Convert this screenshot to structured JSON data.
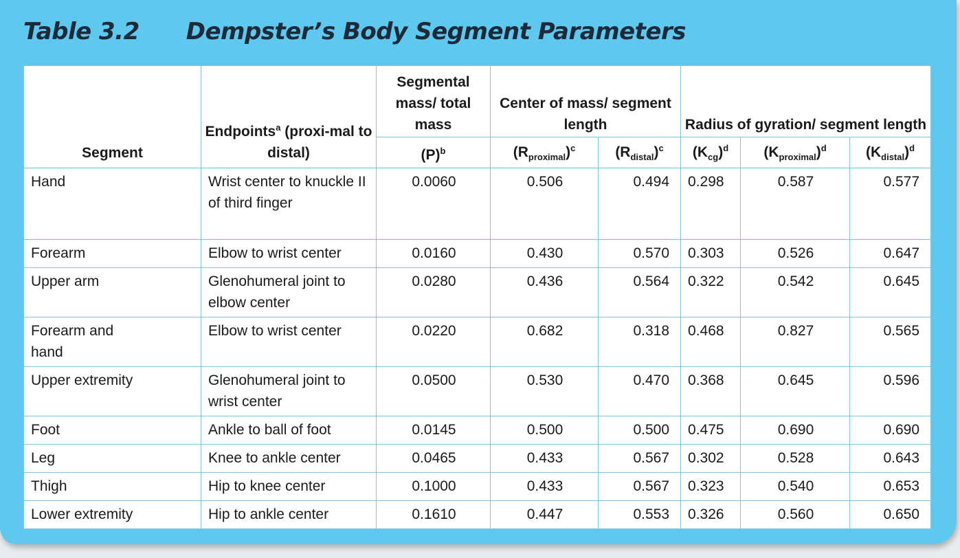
{
  "title": {
    "number": "Table 3.2",
    "name": "Dempster’s Body Segment Parameters"
  },
  "headers": {
    "segment": "Segment",
    "endpoints": "Endpoints",
    "endpoints_sup": "a",
    "endpoints_rest": " (proxi-mal to distal)",
    "mass_group": "Segmental mass/ total mass",
    "com_group": "Center of mass/ segment length",
    "gyr_group": "Radius of gyration/ segment length",
    "p": "(P)",
    "p_sup": "b",
    "r_prox_open": "(R",
    "r_prox_sub": "proximal",
    "r_prox_close": ")",
    "r_prox_sup": "c",
    "r_dist_open": "(R",
    "r_dist_sub": "distal",
    "r_dist_close": ")",
    "r_dist_sup": "c",
    "k_cg_open": "(K",
    "k_cg_sub": "cg",
    "k_cg_close": ")",
    "k_cg_sup": "d",
    "k_prox_open": "(K",
    "k_prox_sub": "proximal",
    "k_prox_close": ")",
    "k_prox_sup": "d",
    "k_dist_open": "(K",
    "k_dist_sub": "distal",
    "k_dist_close": ")",
    "k_dist_sup": "d"
  },
  "rows": [
    {
      "segment": "Hand",
      "endpoints": "Wrist center to knuckle II of third finger",
      "p": "0.0060",
      "r_prox": "0.506",
      "r_dist": "0.494",
      "k_cg": "0.298",
      "k_prox": "0.587",
      "k_dist": "0.577"
    },
    {
      "segment": "Forearm",
      "endpoints": "Elbow to wrist center",
      "p": "0.0160",
      "r_prox": "0.430",
      "r_dist": "0.570",
      "k_cg": "0.303",
      "k_prox": "0.526",
      "k_dist": "0.647"
    },
    {
      "segment": "Upper arm",
      "endpoints": "Glenohumeral joint to elbow center",
      "p": "0.0280",
      "r_prox": "0.436",
      "r_dist": "0.564",
      "k_cg": "0.322",
      "k_prox": "0.542",
      "k_dist": "0.645"
    },
    {
      "segment": "Forearm and hand",
      "endpoints": "Elbow to wrist center",
      "p": "0.0220",
      "r_prox": "0.682",
      "r_dist": "0.318",
      "k_cg": "0.468",
      "k_prox": "0.827",
      "k_dist": "0.565"
    },
    {
      "segment": "Upper extremity",
      "endpoints": "Glenohumeral joint to wrist center",
      "p": "0.0500",
      "r_prox": "0.530",
      "r_dist": "0.470",
      "k_cg": "0.368",
      "k_prox": "0.645",
      "k_dist": "0.596"
    },
    {
      "segment": "Foot",
      "endpoints": "Ankle to ball of foot",
      "p": "0.0145",
      "r_prox": "0.500",
      "r_dist": "0.500",
      "k_cg": "0.475",
      "k_prox": "0.690",
      "k_dist": "0.690"
    },
    {
      "segment": "Leg",
      "endpoints": "Knee to ankle center",
      "p": "0.0465",
      "r_prox": "0.433",
      "r_dist": "0.567",
      "k_cg": "0.302",
      "k_prox": "0.528",
      "k_dist": "0.643"
    },
    {
      "segment": "Thigh",
      "endpoints": "Hip to knee center",
      "p": "0.1000",
      "r_prox": "0.433",
      "r_dist": "0.567",
      "k_cg": "0.323",
      "k_prox": "0.540",
      "k_dist": "0.653"
    },
    {
      "segment": "Lower extremity",
      "endpoints": "Hip to ankle center",
      "p": "0.1610",
      "r_prox": "0.447",
      "r_dist": "0.553",
      "k_cg": "0.326",
      "k_prox": "0.560",
      "k_dist": "0.650"
    }
  ]
}
